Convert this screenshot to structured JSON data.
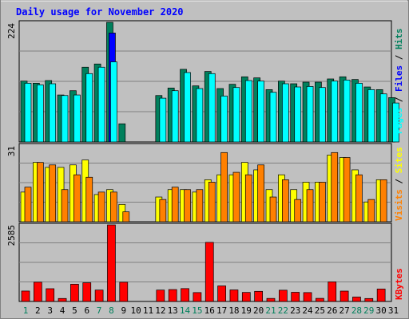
{
  "chart_data": [
    {
      "type": "bar",
      "title": "Daily usage for November 2020",
      "categories": [
        "1",
        "2",
        "3",
        "4",
        "5",
        "6",
        "7",
        "8",
        "9",
        "10",
        "11",
        "12",
        "13",
        "14",
        "15",
        "16",
        "17",
        "18",
        "19",
        "20",
        "21",
        "22",
        "23",
        "24",
        "25",
        "26",
        "27",
        "28",
        "29",
        "30",
        "31"
      ],
      "weekend_days": [
        "1",
        "7",
        "8",
        "14",
        "15",
        "21",
        "22",
        "28",
        "29"
      ],
      "ymax_label": "224",
      "ylim": [
        0,
        224
      ],
      "series": [
        {
          "name": "Hits",
          "color": "#00805c",
          "values": [
            114,
            110,
            115,
            88,
            96,
            140,
            146,
            224,
            34,
            0,
            0,
            87,
            101,
            136,
            105,
            132,
            100,
            108,
            122,
            120,
            98,
            114,
            109,
            112,
            112,
            118,
            122,
            117,
            103,
            98,
            83
          ]
        },
        {
          "name": "Files",
          "color": "#0000ff",
          "values": [
            0,
            0,
            0,
            0,
            0,
            0,
            0,
            204,
            0,
            0,
            0,
            0,
            0,
            0,
            0,
            0,
            0,
            0,
            0,
            0,
            0,
            0,
            0,
            0,
            0,
            0,
            0,
            0,
            0,
            0,
            0
          ]
        },
        {
          "name": "Pages",
          "color": "#00ffff",
          "values": [
            110,
            107,
            109,
            87,
            88,
            128,
            140,
            150,
            0,
            0,
            0,
            82,
            96,
            130,
            100,
            128,
            86,
            102,
            115,
            114,
            93,
            109,
            103,
            104,
            102,
            114,
            116,
            110,
            98,
            90,
            73
          ]
        }
      ]
    },
    {
      "type": "bar",
      "categories": [
        "1",
        "2",
        "3",
        "4",
        "5",
        "6",
        "7",
        "8",
        "9",
        "10",
        "11",
        "12",
        "13",
        "14",
        "15",
        "16",
        "17",
        "18",
        "19",
        "20",
        "21",
        "22",
        "23",
        "24",
        "25",
        "26",
        "27",
        "28",
        "29",
        "30",
        "31"
      ],
      "ymax_label": "31",
      "ylim": [
        0,
        31
      ],
      "series": [
        {
          "name": "Sites",
          "color": "#ffff00",
          "values": [
            12,
            24,
            22,
            22,
            23,
            25,
            11,
            13,
            7,
            0,
            0,
            10,
            13,
            13,
            12,
            17,
            19,
            19,
            24,
            21,
            13,
            19,
            13,
            16,
            16,
            27,
            26,
            21,
            8,
            17,
            0
          ]
        },
        {
          "name": "Visits",
          "color": "#ff8000",
          "values": [
            14,
            24,
            23,
            13,
            19,
            18,
            12,
            12,
            4,
            0,
            0,
            9,
            14,
            13,
            13,
            16,
            28,
            20,
            19,
            23,
            10,
            17,
            9,
            13,
            16,
            28,
            26,
            19,
            9,
            17,
            0
          ]
        }
      ]
    },
    {
      "type": "bar",
      "categories": [
        "1",
        "2",
        "3",
        "4",
        "5",
        "6",
        "7",
        "8",
        "9",
        "10",
        "11",
        "12",
        "13",
        "14",
        "15",
        "16",
        "17",
        "18",
        "19",
        "20",
        "21",
        "22",
        "23",
        "24",
        "25",
        "26",
        "27",
        "28",
        "29",
        "30",
        "31"
      ],
      "ymax_label": "2585",
      "ylim": [
        0,
        2585
      ],
      "series": [
        {
          "name": "KBytes",
          "color": "#ff0000",
          "values": [
            352,
            651,
            431,
            101,
            582,
            632,
            385,
            2585,
            650,
            0,
            0,
            385,
            402,
            435,
            300,
            1995,
            525,
            390,
            305,
            342,
            103,
            380,
            310,
            300,
            105,
            662,
            350,
            150,
            100,
            420,
            0
          ]
        }
      ]
    }
  ]
}
